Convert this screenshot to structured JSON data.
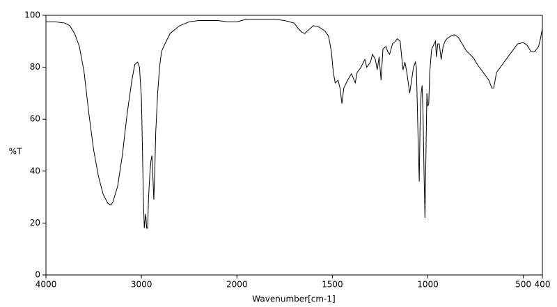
{
  "chart_data": {
    "type": "line",
    "x_label": "Wavenumber[cm-1]",
    "y_label": "%T",
    "xlim": [
      4000,
      400
    ],
    "xscale_break": 2000,
    "ylim": [
      0,
      100
    ],
    "xticks": [
      4000,
      3000,
      2000,
      1500,
      1000,
      500,
      400
    ],
    "yticks": [
      0,
      20,
      40,
      60,
      80,
      100
    ],
    "x": [
      4000,
      3900,
      3800,
      3750,
      3700,
      3650,
      3600,
      3550,
      3500,
      3450,
      3400,
      3350,
      3320,
      3300,
      3250,
      3200,
      3150,
      3100,
      3070,
      3040,
      3020,
      3000,
      2990,
      2980,
      2970,
      2960,
      2955,
      2945,
      2935,
      2925,
      2910,
      2900,
      2890,
      2880,
      2870,
      2860,
      2850,
      2830,
      2810,
      2790,
      2760,
      2700,
      2600,
      2500,
      2400,
      2300,
      2200,
      2100,
      2000,
      1950,
      1900,
      1800,
      1750,
      1700,
      1680,
      1660,
      1645,
      1630,
      1600,
      1570,
      1540,
      1520,
      1505,
      1495,
      1485,
      1470,
      1460,
      1450,
      1440,
      1420,
      1400,
      1380,
      1370,
      1350,
      1330,
      1320,
      1300,
      1290,
      1275,
      1265,
      1255,
      1245,
      1235,
      1220,
      1210,
      1200,
      1185,
      1170,
      1160,
      1145,
      1130,
      1120,
      1110,
      1095,
      1085,
      1075,
      1065,
      1060,
      1050,
      1045,
      1040,
      1035,
      1030,
      1025,
      1020,
      1015,
      1010,
      1005,
      1000,
      995,
      990,
      980,
      970,
      960,
      955,
      948,
      940,
      930,
      920,
      910,
      900,
      880,
      860,
      840,
      820,
      800,
      780,
      760,
      740,
      720,
      700,
      680,
      665,
      655,
      640,
      600,
      560,
      530,
      500,
      480,
      460,
      440,
      420,
      410,
      400
    ],
    "series": [
      {
        "color": "#000000",
        "values": [
          97.5,
          97.5,
          97,
          96,
          93,
          88,
          78,
          62,
          48,
          38,
          31,
          27.5,
          27,
          28,
          34,
          46,
          62,
          75,
          81,
          82,
          80,
          68,
          50,
          30,
          18,
          22,
          23.5,
          18,
          18,
          30,
          40,
          44,
          46,
          38,
          29,
          40,
          55,
          70,
          80,
          86,
          88.5,
          93,
          96,
          97.5,
          98,
          98,
          98,
          97.5,
          97.5,
          98.5,
          98.5,
          98.5,
          98,
          97,
          95,
          93.5,
          93,
          94,
          96,
          95.5,
          94,
          92,
          86,
          78,
          74,
          75,
          72,
          66,
          72,
          75,
          77.5,
          74,
          78,
          80,
          83,
          80,
          82,
          85,
          83,
          79,
          84,
          75,
          87,
          88,
          86,
          85,
          89,
          90,
          91,
          90,
          79,
          82,
          78,
          70,
          75,
          80,
          82,
          80,
          50,
          36,
          60,
          70,
          73,
          62,
          40,
          22,
          45,
          70,
          65,
          66,
          78,
          87,
          88.5,
          90,
          84,
          89,
          89,
          83,
          88,
          90,
          91,
          92,
          92.5,
          91.5,
          89,
          86.5,
          85,
          83.5,
          81,
          79,
          77,
          75,
          72,
          72,
          78,
          82,
          86,
          89,
          89.5,
          88.5,
          86,
          86,
          88,
          91,
          95
        ]
      }
    ]
  }
}
